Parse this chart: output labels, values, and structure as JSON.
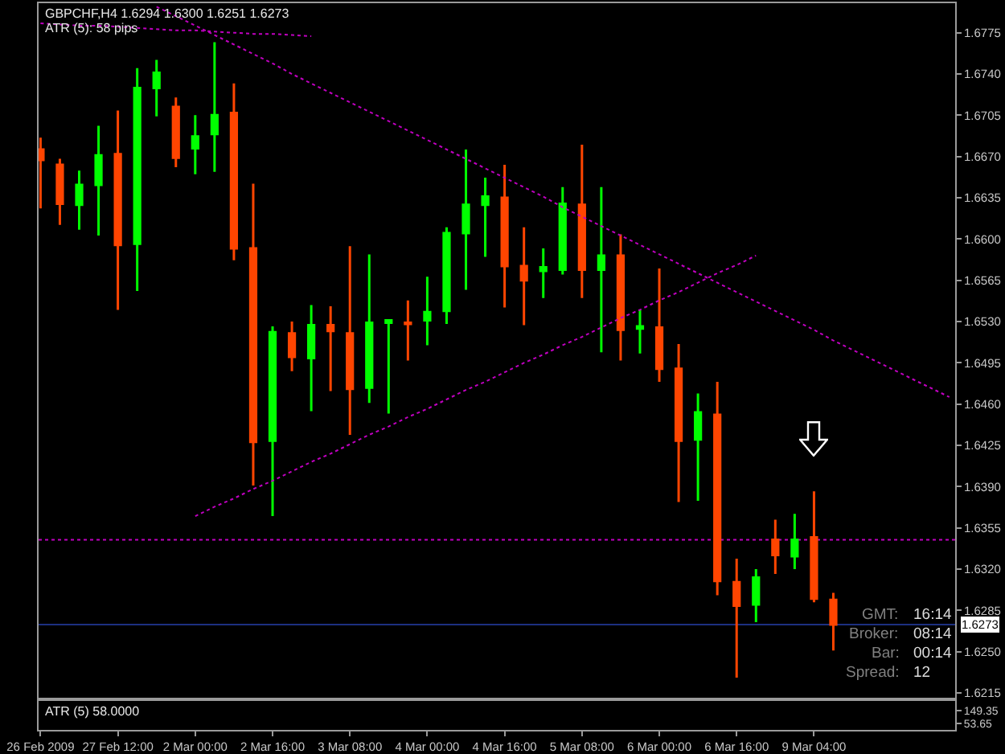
{
  "chart_data": [
    {
      "type": "candlestick",
      "title": "GBPCHF,H4 1.6294 1.6300 1.6251 1.6273",
      "subtitle": "ATR (5): 58 pips",
      "categories": [
        "26 Feb 2009",
        null,
        null,
        null,
        "27 Feb 12:00",
        null,
        null,
        null,
        "2 Mar 00:00",
        null,
        null,
        null,
        "2 Mar 16:00",
        null,
        null,
        null,
        "3 Mar 08:00",
        null,
        null,
        null,
        "4 Mar 00:00",
        null,
        null,
        null,
        "4 Mar 16:00",
        null,
        null,
        null,
        "5 Mar 08:00",
        null,
        null,
        null,
        "6 Mar 00:00",
        null,
        null,
        null,
        "6 Mar 16:00",
        null,
        null,
        null,
        "9 Mar 04:00",
        null,
        null,
        null,
        null,
        null,
        null,
        null
      ],
      "ohlc": [
        [
          1.6676,
          1.6686,
          1.6626,
          1.6667
        ],
        [
          1.6663,
          1.6668,
          1.6612,
          1.663
        ],
        [
          1.6629,
          1.6658,
          1.6608,
          1.6646
        ],
        [
          1.6646,
          1.6696,
          1.6603,
          1.6671
        ],
        [
          1.6672,
          1.6709,
          1.654,
          1.6595
        ],
        [
          1.6596,
          1.6745,
          1.6556,
          1.6728
        ],
        [
          1.6728,
          1.6752,
          1.6704,
          1.6741
        ],
        [
          1.6712,
          1.672,
          1.6661,
          1.6669
        ],
        [
          1.6677,
          1.6705,
          1.6655,
          1.6687
        ],
        [
          1.6689,
          1.6767,
          1.6657,
          1.6705
        ],
        [
          1.6707,
          1.6732,
          1.6582,
          1.6592
        ],
        [
          1.6592,
          1.6647,
          1.6391,
          1.6428
        ],
        [
          1.6429,
          1.6526,
          1.6365,
          1.6521
        ],
        [
          1.652,
          1.653,
          1.6488,
          1.65
        ],
        [
          1.6499,
          1.6544,
          1.6454,
          1.6527
        ],
        [
          1.6527,
          1.6543,
          1.6471,
          1.6522
        ],
        [
          1.652,
          1.6594,
          1.6434,
          1.6473
        ],
        [
          1.6474,
          1.6587,
          1.6461,
          1.6529
        ],
        [
          1.6529,
          1.6532,
          1.6452,
          1.6531
        ],
        [
          1.6529,
          1.6548,
          1.6497,
          1.6528
        ],
        [
          1.6531,
          1.6568,
          1.651,
          1.6538
        ],
        [
          1.6539,
          1.661,
          1.6528,
          1.6605
        ],
        [
          1.6605,
          1.6676,
          1.6557,
          1.6629
        ],
        [
          1.6629,
          1.6652,
          1.6585,
          1.6636
        ],
        [
          1.6635,
          1.6663,
          1.6542,
          1.6577
        ],
        [
          1.6577,
          1.661,
          1.6527,
          1.6565
        ],
        [
          1.6573,
          1.6592,
          1.655,
          1.6576
        ],
        [
          1.6574,
          1.6644,
          1.657,
          1.663
        ],
        [
          1.6629,
          1.668,
          1.655,
          1.6574
        ],
        [
          1.6574,
          1.6644,
          1.6504,
          1.6586
        ],
        [
          1.6586,
          1.6604,
          1.6497,
          1.6523
        ],
        [
          1.6524,
          1.654,
          1.6503,
          1.6526
        ],
        [
          1.6525,
          1.6575,
          1.6479,
          1.649
        ],
        [
          1.649,
          1.6511,
          1.6377,
          1.6429
        ],
        [
          1.643,
          1.6469,
          1.6378,
          1.6453
        ],
        [
          1.6451,
          1.6479,
          1.6298,
          1.631
        ],
        [
          1.6309,
          1.6329,
          1.6228,
          1.6289
        ],
        [
          1.629,
          1.632,
          1.6275,
          1.6313
        ],
        [
          1.6345,
          1.6362,
          1.6316,
          1.6332
        ],
        [
          1.6331,
          1.6367,
          1.632,
          1.6345
        ],
        [
          1.6347,
          1.6386,
          1.6292,
          1.6295
        ],
        [
          1.6294,
          1.63,
          1.6251,
          1.6273
        ],
        null,
        null,
        null,
        null,
        null,
        null
      ],
      "colors": [
        "#ff4500",
        "#ff4500",
        "#00ff00",
        "#00ff00",
        "#ff4500",
        "#00ff00",
        "#00ff00",
        "#ff4500",
        "#00ff00",
        "#00ff00",
        "#ff4500",
        "#ff4500",
        "#00ff00",
        "#ff4500",
        "#00ff00",
        "#ff4500",
        "#ff4500",
        "#00ff00",
        "#00ff00",
        "#ff4500",
        "#00ff00",
        "#00ff00",
        "#00ff00",
        "#00ff00",
        "#ff4500",
        "#ff4500",
        "#00ff00",
        "#00ff00",
        "#ff4500",
        "#00ff00",
        "#ff4500",
        "#00ff00",
        "#ff4500",
        "#ff4500",
        "#00ff00",
        "#ff4500",
        "#ff4500",
        "#00ff00",
        "#ff4500",
        "#00ff00",
        "#ff4500",
        "#ff4500",
        null,
        null,
        null,
        null,
        null,
        null
      ],
      "series": [
        {
          "type": "line",
          "color": "#c000c0",
          "line_style": "dotted",
          "values": [
            null,
            null,
            null,
            null,
            null,
            null,
            1.6797,
            1.6789,
            1.6781,
            1.6773,
            1.6765,
            1.6757,
            1.6749,
            1.674,
            1.6732,
            1.6724,
            1.6716,
            1.6708,
            1.67,
            1.6692,
            1.6684,
            1.6676,
            1.6668,
            1.666,
            1.6652,
            1.6644,
            1.6636,
            1.6627,
            1.6619,
            1.6611,
            1.6603,
            1.6595,
            1.6587,
            1.6579,
            1.6571,
            1.6563,
            1.6555,
            1.6547,
            1.6539,
            1.6531,
            1.6523,
            1.6514,
            1.6506,
            1.6498,
            1.649,
            1.6482,
            1.6474,
            1.6466
          ]
        },
        {
          "type": "line",
          "color": "#c000c0",
          "line_style": "dotted",
          "values": [
            1.6783,
            1.6782,
            1.6781,
            1.6781,
            1.678,
            1.6779,
            1.6778,
            1.6777,
            1.6777,
            1.6776,
            1.6775,
            1.6774,
            1.6774,
            1.6773,
            1.6772,
            null,
            null,
            null,
            null,
            null,
            null,
            null,
            null,
            null,
            null,
            null,
            null,
            null,
            null,
            null,
            null,
            null,
            null,
            null,
            null,
            null,
            null,
            null,
            null,
            null,
            null,
            null,
            null,
            null,
            null,
            null,
            null,
            null
          ]
        },
        {
          "type": "line",
          "color": "#c000c0",
          "line_style": "dotted",
          "values": [
            null,
            null,
            null,
            null,
            null,
            null,
            null,
            null,
            1.6365,
            1.6373,
            1.638,
            1.6388,
            1.6395,
            1.6403,
            1.6411,
            1.6418,
            1.6426,
            1.6434,
            1.6441,
            1.6449,
            1.6456,
            1.6464,
            1.6472,
            1.6479,
            1.6487,
            1.6495,
            1.6502,
            1.651,
            1.6517,
            1.6525,
            1.6533,
            1.654,
            1.6548,
            1.6555,
            1.6563,
            1.6571,
            1.6578,
            1.6586,
            null,
            null,
            null,
            null,
            null,
            null,
            null,
            null,
            null,
            null
          ]
        }
      ],
      "ylim": [
        1.6211,
        1.68
      ],
      "yticks": [
        1.6215,
        {
          "value": 1.625,
          "label": "1.6250"
        },
        1.6285,
        {
          "value": 1.632,
          "label": "1.6320"
        },
        1.6355,
        {
          "value": 1.639,
          "label": "1.6390"
        },
        1.6425,
        {
          "value": 1.646,
          "label": "1.6460"
        },
        1.6495,
        {
          "value": 1.653,
          "label": "1.6530"
        },
        1.6565,
        {
          "value": 1.66,
          "label": "1.6600"
        },
        1.6635,
        {
          "value": 1.667,
          "label": "1.6670"
        },
        1.6705,
        {
          "value": 1.674,
          "label": "1.6740"
        },
        1.6775
      ],
      "ref_lines": [
        {
          "axis": "y",
          "value": 1.6345,
          "color": "#c000c0",
          "line_style": "dotted"
        },
        {
          "axis": "y",
          "value": 1.6273,
          "label": "1.6273",
          "color": "#1c2f80"
        }
      ],
      "annotations": [
        "GMT:",
        "16:14",
        "Broker:",
        "08:14",
        "Bar:",
        "00:14",
        "Spread:",
        "12"
      ]
    },
    {
      "type": "line",
      "title": "ATR (5) 58.0000",
      "categories": [
        null,
        null,
        null,
        null,
        null,
        null,
        null,
        null,
        null,
        null,
        null,
        null,
        null,
        null,
        null,
        null,
        null,
        null,
        null,
        null,
        null,
        null,
        null,
        null,
        null,
        null,
        null,
        null,
        null,
        null,
        null,
        null,
        null,
        null,
        null,
        null,
        null,
        null,
        null,
        null,
        null,
        null,
        null,
        null,
        null,
        null,
        null,
        null
      ],
      "ylim": [
        6,
        221
      ],
      "yticks": [
        53.65,
        149.35
      ]
    }
  ]
}
